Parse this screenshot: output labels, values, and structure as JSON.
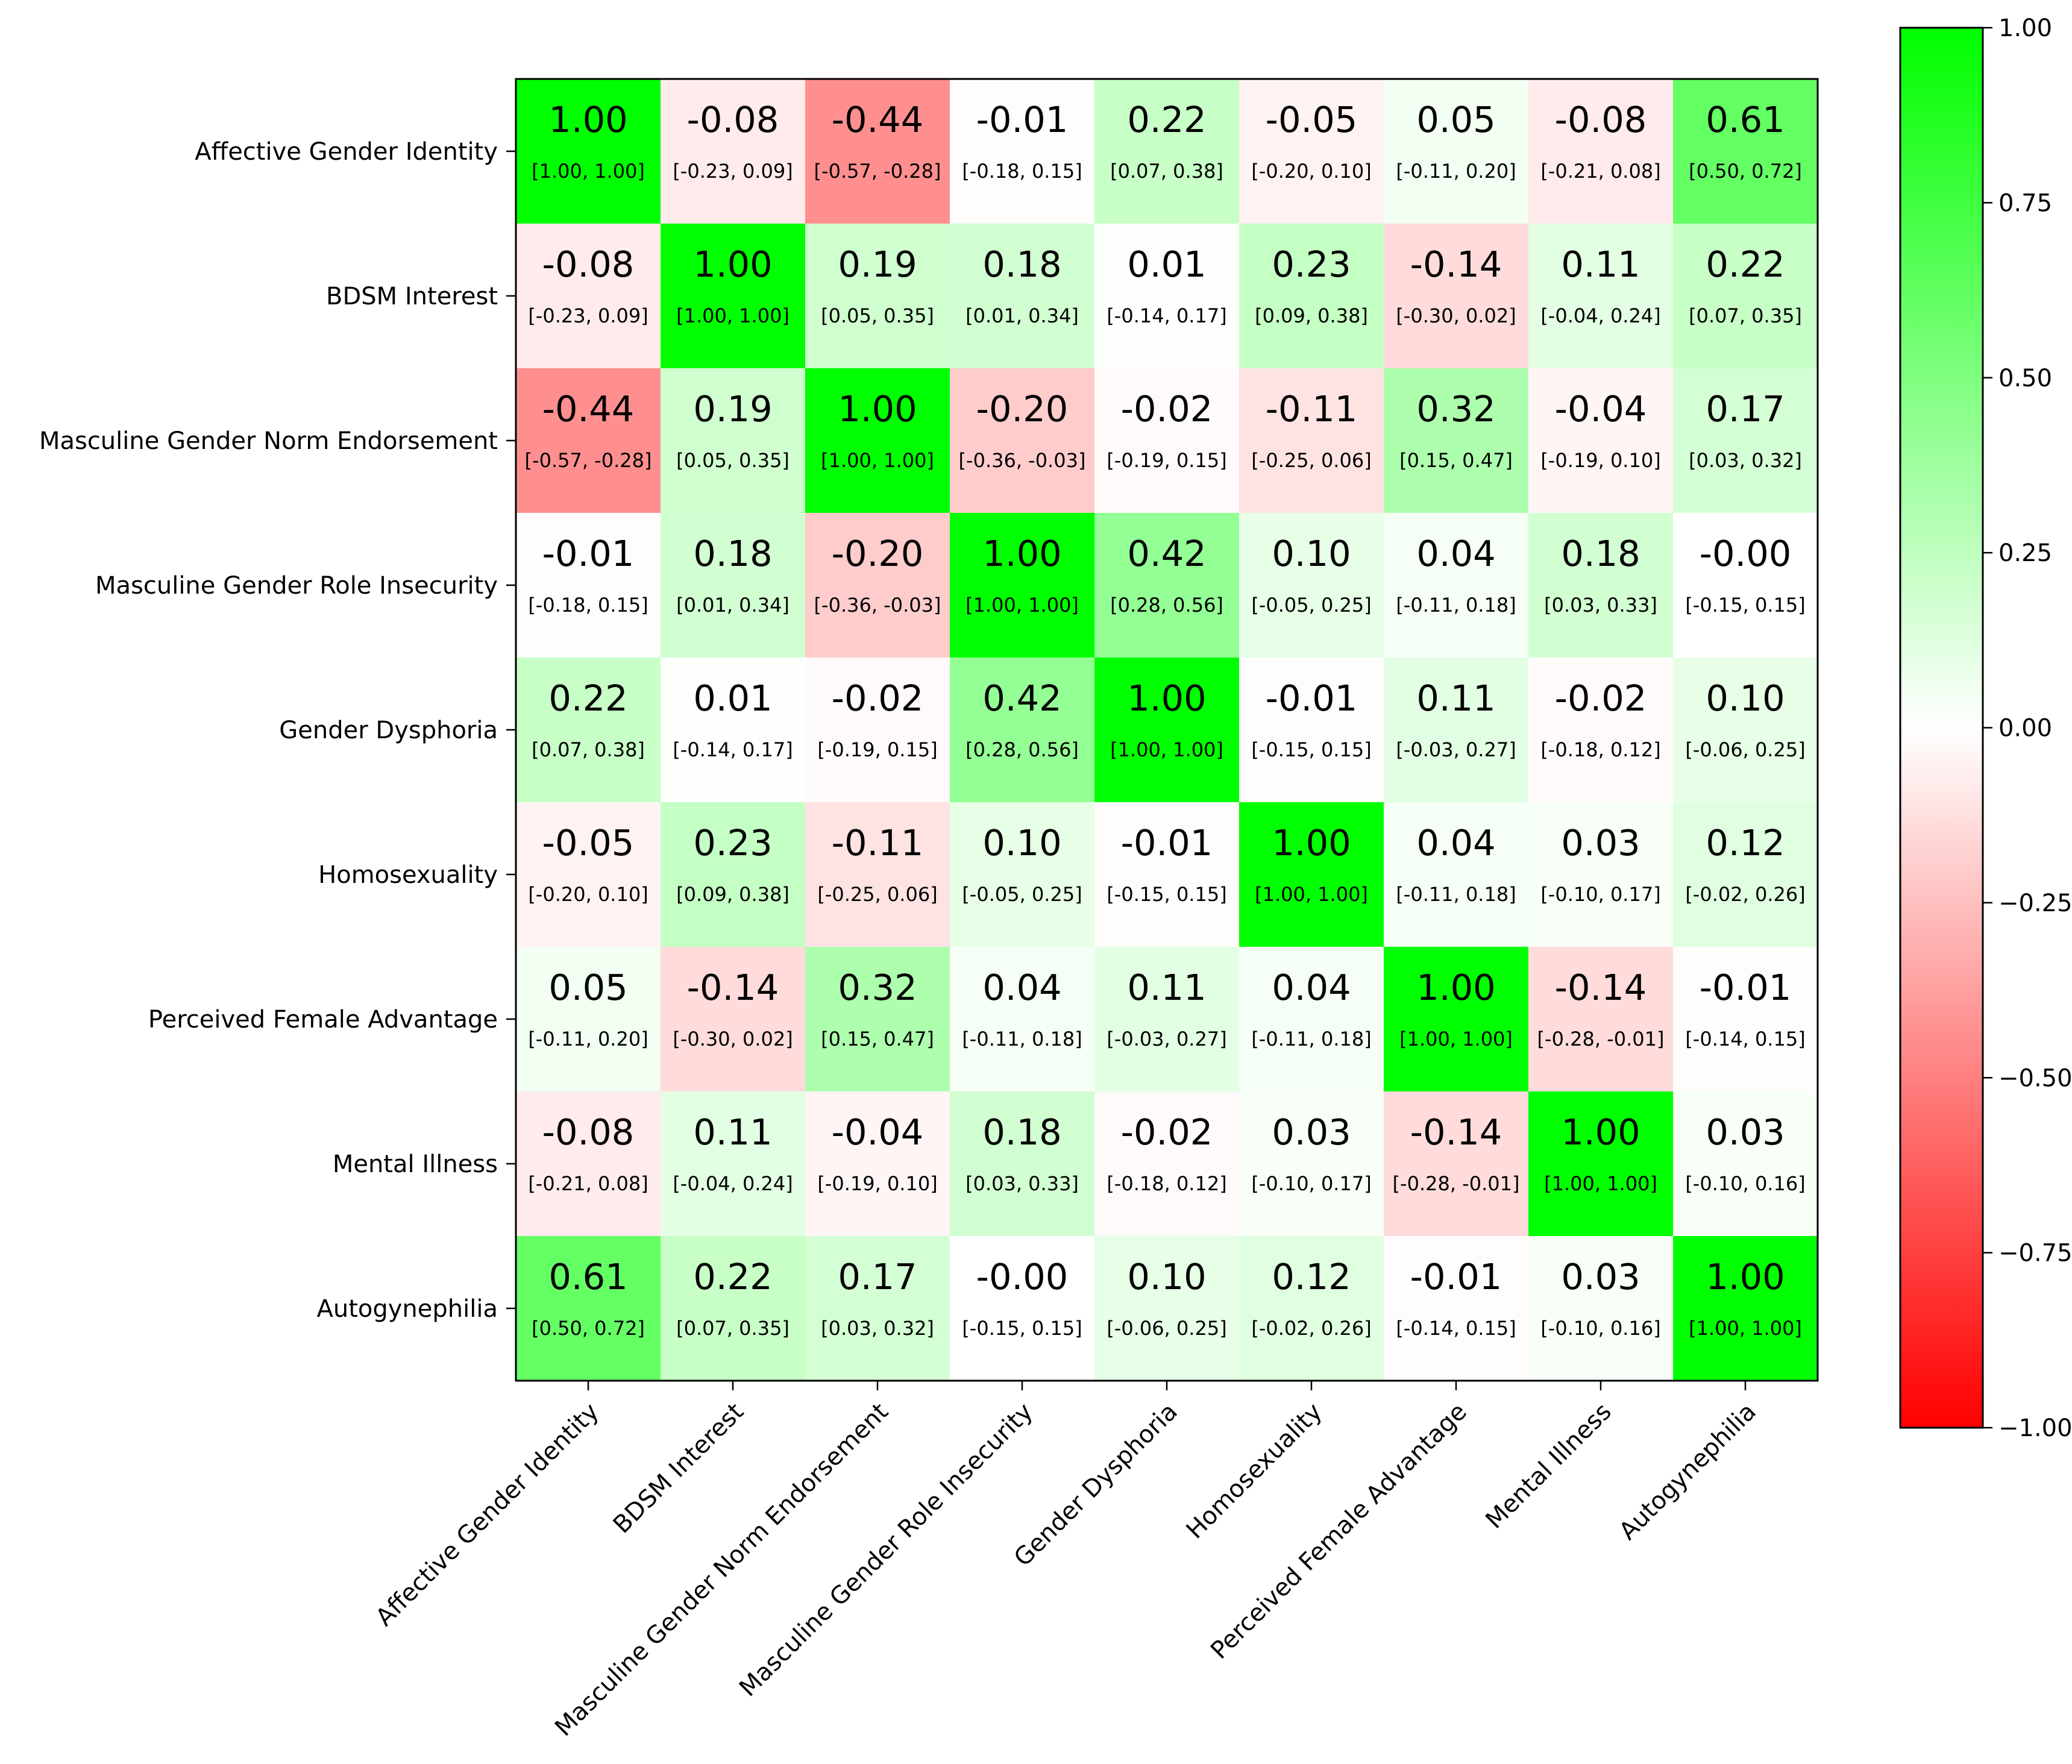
{
  "chart_data": {
    "type": "heatmap",
    "title": "",
    "variables": [
      "Affective Gender Identity",
      "BDSM Interest",
      "Masculine Gender Norm Endorsement",
      "Masculine Gender Role Insecurity",
      "Gender Dysphoria",
      "Homosexuality",
      "Perceived Female Advantage",
      "Mental Illness",
      "Autogynephilia"
    ],
    "values": [
      [
        1.0,
        -0.08,
        -0.44,
        -0.01,
        0.22,
        -0.05,
        0.05,
        -0.08,
        0.61
      ],
      [
        -0.08,
        1.0,
        0.19,
        0.18,
        0.01,
        0.23,
        -0.14,
        0.11,
        0.22
      ],
      [
        -0.44,
        0.19,
        1.0,
        -0.2,
        -0.02,
        -0.11,
        0.32,
        -0.04,
        0.17
      ],
      [
        -0.01,
        0.18,
        -0.2,
        1.0,
        0.42,
        0.1,
        0.04,
        0.18,
        -0.0
      ],
      [
        0.22,
        0.01,
        -0.02,
        0.42,
        1.0,
        -0.01,
        0.11,
        -0.02,
        0.1
      ],
      [
        -0.05,
        0.23,
        -0.11,
        0.1,
        -0.01,
        1.0,
        0.04,
        0.03,
        0.12
      ],
      [
        0.05,
        -0.14,
        0.32,
        0.04,
        0.11,
        0.04,
        1.0,
        -0.14,
        -0.01
      ],
      [
        -0.08,
        0.11,
        -0.04,
        0.18,
        -0.02,
        0.03,
        -0.14,
        1.0,
        0.03
      ],
      [
        0.61,
        0.22,
        0.17,
        -0.0,
        0.1,
        0.12,
        -0.01,
        0.03,
        1.0
      ]
    ],
    "value_labels": [
      [
        "1.00",
        "-0.08",
        "-0.44",
        "-0.01",
        "0.22",
        "-0.05",
        "0.05",
        "-0.08",
        "0.61"
      ],
      [
        "-0.08",
        "1.00",
        "0.19",
        "0.18",
        "0.01",
        "0.23",
        "-0.14",
        "0.11",
        "0.22"
      ],
      [
        "-0.44",
        "0.19",
        "1.00",
        "-0.20",
        "-0.02",
        "-0.11",
        "0.32",
        "-0.04",
        "0.17"
      ],
      [
        "-0.01",
        "0.18",
        "-0.20",
        "1.00",
        "0.42",
        "0.10",
        "0.04",
        "0.18",
        "-0.00"
      ],
      [
        "0.22",
        "0.01",
        "-0.02",
        "0.42",
        "1.00",
        "-0.01",
        "0.11",
        "-0.02",
        "0.10"
      ],
      [
        "-0.05",
        "0.23",
        "-0.11",
        "0.10",
        "-0.01",
        "1.00",
        "0.04",
        "0.03",
        "0.12"
      ],
      [
        "0.05",
        "-0.14",
        "0.32",
        "0.04",
        "0.11",
        "0.04",
        "1.00",
        "-0.14",
        "-0.01"
      ],
      [
        "-0.08",
        "0.11",
        "-0.04",
        "0.18",
        "-0.02",
        "0.03",
        "-0.14",
        "1.00",
        "0.03"
      ],
      [
        "0.61",
        "0.22",
        "0.17",
        "-0.00",
        "0.10",
        "0.12",
        "-0.01",
        "0.03",
        "1.00"
      ]
    ],
    "ci_labels": [
      [
        "[1.00, 1.00]",
        "[-0.23, 0.09]",
        "[-0.57, -0.28]",
        "[-0.18, 0.15]",
        "[0.07, 0.38]",
        "[-0.20, 0.10]",
        "[-0.11, 0.20]",
        "[-0.21, 0.08]",
        "[0.50, 0.72]"
      ],
      [
        "[-0.23, 0.09]",
        "[1.00, 1.00]",
        "[0.05, 0.35]",
        "[0.01, 0.34]",
        "[-0.14, 0.17]",
        "[0.09, 0.38]",
        "[-0.30, 0.02]",
        "[-0.04, 0.24]",
        "[0.07, 0.35]"
      ],
      [
        "[-0.57, -0.28]",
        "[0.05, 0.35]",
        "[1.00, 1.00]",
        "[-0.36, -0.03]",
        "[-0.19, 0.15]",
        "[-0.25, 0.06]",
        "[0.15, 0.47]",
        "[-0.19, 0.10]",
        "[0.03, 0.32]"
      ],
      [
        "[-0.18, 0.15]",
        "[0.01, 0.34]",
        "[-0.36, -0.03]",
        "[1.00, 1.00]",
        "[0.28, 0.56]",
        "[-0.05, 0.25]",
        "[-0.11, 0.18]",
        "[0.03, 0.33]",
        "[-0.15, 0.15]"
      ],
      [
        "[0.07, 0.38]",
        "[-0.14, 0.17]",
        "[-0.19, 0.15]",
        "[0.28, 0.56]",
        "[1.00, 1.00]",
        "[-0.15, 0.15]",
        "[-0.03, 0.27]",
        "[-0.18, 0.12]",
        "[-0.06, 0.25]"
      ],
      [
        "[-0.20, 0.10]",
        "[0.09, 0.38]",
        "[-0.25, 0.06]",
        "[-0.05, 0.25]",
        "[-0.15, 0.15]",
        "[1.00, 1.00]",
        "[-0.11, 0.18]",
        "[-0.10, 0.17]",
        "[-0.02, 0.26]"
      ],
      [
        "[-0.11, 0.20]",
        "[-0.30, 0.02]",
        "[0.15, 0.47]",
        "[-0.11, 0.18]",
        "[-0.03, 0.27]",
        "[-0.11, 0.18]",
        "[1.00, 1.00]",
        "[-0.28, -0.01]",
        "[-0.14, 0.15]"
      ],
      [
        "[-0.21, 0.08]",
        "[-0.04, 0.24]",
        "[-0.19, 0.10]",
        "[0.03, 0.33]",
        "[-0.18, 0.12]",
        "[-0.10, 0.17]",
        "[-0.28, -0.01]",
        "[1.00, 1.00]",
        "[-0.10, 0.16]"
      ],
      [
        "[0.50, 0.72]",
        "[0.07, 0.35]",
        "[0.03, 0.32]",
        "[-0.15, 0.15]",
        "[-0.06, 0.25]",
        "[-0.02, 0.26]",
        "[-0.14, 0.15]",
        "[-0.10, 0.16]",
        "[1.00, 1.00]"
      ]
    ],
    "colorbar": {
      "min": -1.0,
      "max": 1.0,
      "ticks": [
        1.0,
        0.75,
        0.5,
        0.25,
        0.0,
        -0.25,
        -0.5,
        -0.75,
        -1.0
      ],
      "tick_labels": [
        "1.00",
        "0.75",
        "0.50",
        "0.25",
        "0.00",
        "−0.25",
        "−0.50",
        "−0.75",
        "−1.00"
      ],
      "colors": {
        "low": "#ff0000",
        "mid": "#ffffff",
        "high": "#00ff00"
      }
    }
  }
}
